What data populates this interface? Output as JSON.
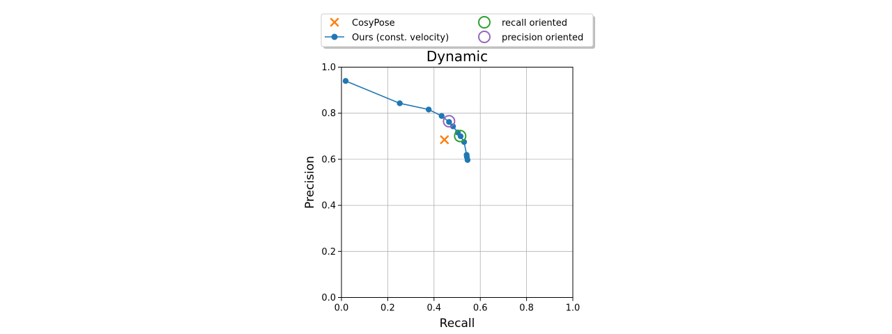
{
  "chart_data": {
    "type": "scatter",
    "title": "Dynamic",
    "xlabel": "Recall",
    "ylabel": "Precision",
    "xlim": [
      0,
      1
    ],
    "ylim": [
      0,
      1
    ],
    "grid": true,
    "legend_placement": "upper-center-outside",
    "x_ticks": [
      "0.0",
      "0.2",
      "0.4",
      "0.6",
      "0.8",
      "1.0"
    ],
    "y_ticks": [
      "0.0",
      "0.2",
      "0.4",
      "0.6",
      "0.8",
      "1.0"
    ],
    "colors": {
      "ours": "#1f77b4",
      "cosypose": "#ff7f0e",
      "recall_oriented": "#2ca02c",
      "precision_oriented": "#9467bd",
      "grid": "#b0b0b0"
    },
    "series": [
      {
        "name": "Ours (const. velocity)",
        "kind": "line-marker",
        "points": [
          [
            0.018,
            0.94
          ],
          [
            0.252,
            0.843
          ],
          [
            0.377,
            0.816
          ],
          [
            0.433,
            0.788
          ],
          [
            0.465,
            0.762
          ],
          [
            0.482,
            0.743
          ],
          [
            0.503,
            0.716
          ],
          [
            0.515,
            0.7
          ],
          [
            0.53,
            0.675
          ],
          [
            0.541,
            0.619
          ],
          [
            0.542,
            0.61
          ],
          [
            0.545,
            0.597
          ]
        ]
      },
      {
        "name": "CosyPose",
        "kind": "x-marker",
        "points": [
          [
            0.445,
            0.685
          ]
        ]
      },
      {
        "name": "recall oriented",
        "kind": "open-circle",
        "points": [
          [
            0.513,
            0.701
          ]
        ]
      },
      {
        "name": "precision oriented",
        "kind": "open-circle",
        "points": [
          [
            0.465,
            0.765
          ]
        ]
      }
    ],
    "legend": [
      {
        "label": "CosyPose",
        "icon": "x-marker"
      },
      {
        "label": "Ours (const. velocity)",
        "icon": "line-marker"
      },
      {
        "label": "recall oriented",
        "icon": "green-open-circle"
      },
      {
        "label": "precision oriented",
        "icon": "purple-open-circle"
      }
    ]
  }
}
